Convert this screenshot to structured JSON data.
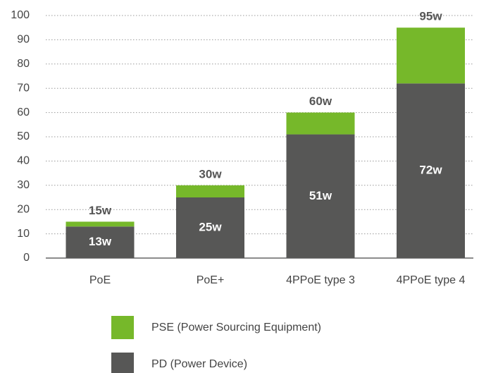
{
  "chart_data": {
    "type": "stacked_bar",
    "categories": [
      "PoE",
      "PoE+",
      "4PPoE type 3",
      "4PPoE type 4"
    ],
    "series": [
      {
        "name": "PD (Power Device)",
        "color": "#575756",
        "values": [
          13,
          25,
          51,
          72
        ],
        "value_labels": [
          "13w",
          "25w",
          "51w",
          "72w"
        ]
      },
      {
        "name": "PSE (Power Sourcing Equipment)",
        "color": "#76b82a",
        "values": [
          2,
          5,
          9,
          23
        ]
      }
    ],
    "total_labels": [
      "15w",
      "30w",
      "60w",
      "95w"
    ],
    "ylim": [
      0,
      100
    ],
    "yticks": [
      0,
      10,
      20,
      30,
      40,
      50,
      60,
      70,
      80,
      90,
      100
    ],
    "grid": true
  }
}
